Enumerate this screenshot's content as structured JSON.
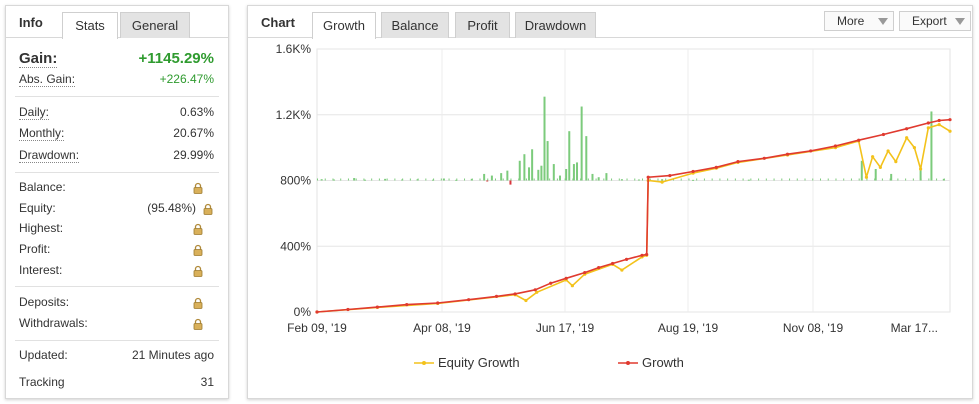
{
  "info": {
    "title": "Info",
    "tabs": [
      "Stats",
      "General"
    ],
    "gain_label": "Gain:",
    "gain_value": "+1145.29%",
    "abs_gain_label": "Abs. Gain:",
    "abs_gain_value": "+226.47%",
    "daily_label": "Daily:",
    "daily_value": "0.63%",
    "monthly_label": "Monthly:",
    "monthly_value": "20.67%",
    "drawdown_label": "Drawdown:",
    "drawdown_value": "29.99%",
    "balance_label": "Balance:",
    "equity_label": "Equity:",
    "equity_value": "(95.48%)",
    "highest_label": "Highest:",
    "profit_label": "Profit:",
    "interest_label": "Interest:",
    "deposits_label": "Deposits:",
    "withdrawals_label": "Withdrawals:",
    "updated_label": "Updated:",
    "updated_value": "21 Minutes ago",
    "tracking_label": "Tracking",
    "tracking_value": "31",
    "lock_icon": "padlock-icon"
  },
  "chart_panel": {
    "title": "Chart",
    "tabs": [
      "Growth",
      "Balance",
      "Profit",
      "Drawdown"
    ],
    "more_label": "More",
    "export_label": "Export"
  },
  "colors": {
    "growth": "#e03a2f",
    "equity": "#f3c21b",
    "profit_bar": "#7ccb7c",
    "loss_bar": "#d9363e",
    "gain_text": "#2f9b2f"
  },
  "chart_data": {
    "type": "line",
    "title": "",
    "xlabel": "",
    "ylabel": "",
    "x_tick_labels": [
      "Feb 09, '19",
      "Apr 08, '19",
      "Jun 17, '19",
      "Aug 19, '19",
      "Nov 08, '19",
      "Mar 17..."
    ],
    "y_tick_labels": [
      "0%",
      "400%",
      "800%",
      "1.2K%",
      "1.6K%"
    ],
    "y_ticks": [
      0,
      400,
      800,
      1200,
      1600
    ],
    "ylim": [
      0,
      1600
    ],
    "x_range": [
      "2019-02-09",
      "2020-03-24"
    ],
    "grid": true,
    "legend_position": "bottom",
    "series": [
      {
        "name": "Growth",
        "color": "#e03a2f",
        "points": [
          [
            "2019-02-09",
            0
          ],
          [
            "2019-03-01",
            15
          ],
          [
            "2019-03-20",
            30
          ],
          [
            "2019-04-08",
            45
          ],
          [
            "2019-04-28",
            55
          ],
          [
            "2019-05-18",
            75
          ],
          [
            "2019-06-05",
            95
          ],
          [
            "2019-06-17",
            110
          ],
          [
            "2019-06-30",
            135
          ],
          [
            "2019-07-10",
            175
          ],
          [
            "2019-07-20",
            205
          ],
          [
            "2019-08-01",
            240
          ],
          [
            "2019-08-10",
            270
          ],
          [
            "2019-08-19",
            295
          ],
          [
            "2019-08-28",
            320
          ],
          [
            "2019-09-07",
            345
          ],
          [
            "2019-09-10",
            350
          ],
          [
            "2019-09-11",
            820
          ],
          [
            "2019-09-25",
            830
          ],
          [
            "2019-10-10",
            855
          ],
          [
            "2019-10-25",
            880
          ],
          [
            "2019-11-08",
            915
          ],
          [
            "2019-11-25",
            935
          ],
          [
            "2019-12-10",
            960
          ],
          [
            "2019-12-25",
            980
          ],
          [
            "2020-01-10",
            1010
          ],
          [
            "2020-01-25",
            1045
          ],
          [
            "2020-02-10",
            1080
          ],
          [
            "2020-02-25",
            1115
          ],
          [
            "2020-03-10",
            1150
          ],
          [
            "2020-03-17",
            1165
          ],
          [
            "2020-03-24",
            1170
          ]
        ]
      },
      {
        "name": "Equity Growth",
        "color": "#f3c21b",
        "points": [
          [
            "2019-02-09",
            0
          ],
          [
            "2019-03-20",
            28
          ],
          [
            "2019-04-28",
            52
          ],
          [
            "2019-06-17",
            105
          ],
          [
            "2019-06-24",
            70
          ],
          [
            "2019-07-01",
            120
          ],
          [
            "2019-07-20",
            195
          ],
          [
            "2019-07-24",
            160
          ],
          [
            "2019-08-01",
            230
          ],
          [
            "2019-08-19",
            290
          ],
          [
            "2019-08-25",
            255
          ],
          [
            "2019-09-07",
            335
          ],
          [
            "2019-09-10",
            345
          ],
          [
            "2019-09-11",
            800
          ],
          [
            "2019-09-20",
            790
          ],
          [
            "2019-10-10",
            845
          ],
          [
            "2019-10-25",
            875
          ],
          [
            "2019-11-08",
            910
          ],
          [
            "2019-12-10",
            955
          ],
          [
            "2020-01-10",
            1000
          ],
          [
            "2020-01-25",
            1040
          ],
          [
            "2020-01-30",
            820
          ],
          [
            "2020-02-03",
            945
          ],
          [
            "2020-02-08",
            880
          ],
          [
            "2020-02-13",
            980
          ],
          [
            "2020-02-18",
            915
          ],
          [
            "2020-02-25",
            1060
          ],
          [
            "2020-03-01",
            1000
          ],
          [
            "2020-03-05",
            870
          ],
          [
            "2020-03-10",
            1120
          ],
          [
            "2020-03-17",
            1140
          ],
          [
            "2020-03-24",
            1100
          ]
        ]
      }
    ],
    "daily_profit_bars": [
      [
        "2019-02-12",
        8
      ],
      [
        "2019-02-20",
        6
      ],
      [
        "2019-03-05",
        15
      ],
      [
        "2019-03-12",
        5
      ],
      [
        "2019-03-25",
        10
      ],
      [
        "2019-04-05",
        6
      ],
      [
        "2019-04-15",
        8
      ],
      [
        "2019-04-25",
        5
      ],
      [
        "2019-05-02",
        12
      ],
      [
        "2019-05-10",
        4
      ],
      [
        "2019-05-20",
        10
      ],
      [
        "2019-05-28",
        40
      ],
      [
        "2019-05-30",
        -4
      ],
      [
        "2019-06-02",
        30
      ],
      [
        "2019-06-08",
        45
      ],
      [
        "2019-06-12",
        60
      ],
      [
        "2019-06-14",
        -25
      ],
      [
        "2019-06-20",
        120
      ],
      [
        "2019-06-23",
        160
      ],
      [
        "2019-06-26",
        80
      ],
      [
        "2019-06-28",
        190
      ],
      [
        "2019-07-02",
        65
      ],
      [
        "2019-07-04",
        90
      ],
      [
        "2019-07-06",
        510
      ],
      [
        "2019-07-08",
        240
      ],
      [
        "2019-07-12",
        100
      ],
      [
        "2019-07-16",
        30
      ],
      [
        "2019-07-20",
        70
      ],
      [
        "2019-07-22",
        300
      ],
      [
        "2019-07-25",
        100
      ],
      [
        "2019-07-27",
        110
      ],
      [
        "2019-07-30",
        450
      ],
      [
        "2019-08-02",
        270
      ],
      [
        "2019-08-06",
        40
      ],
      [
        "2019-08-10",
        20
      ],
      [
        "2019-08-15",
        45
      ],
      [
        "2019-08-25",
        8
      ],
      [
        "2019-09-05",
        6
      ],
      [
        "2019-09-20",
        8
      ],
      [
        "2019-10-10",
        4
      ],
      [
        "2019-11-15",
        5
      ],
      [
        "2020-01-27",
        120
      ],
      [
        "2020-02-05",
        70
      ],
      [
        "2020-02-15",
        40
      ],
      [
        "2020-03-05",
        90
      ],
      [
        "2020-03-12",
        420
      ],
      [
        "2020-03-20",
        10
      ]
    ],
    "bar_baseline": 800
  }
}
